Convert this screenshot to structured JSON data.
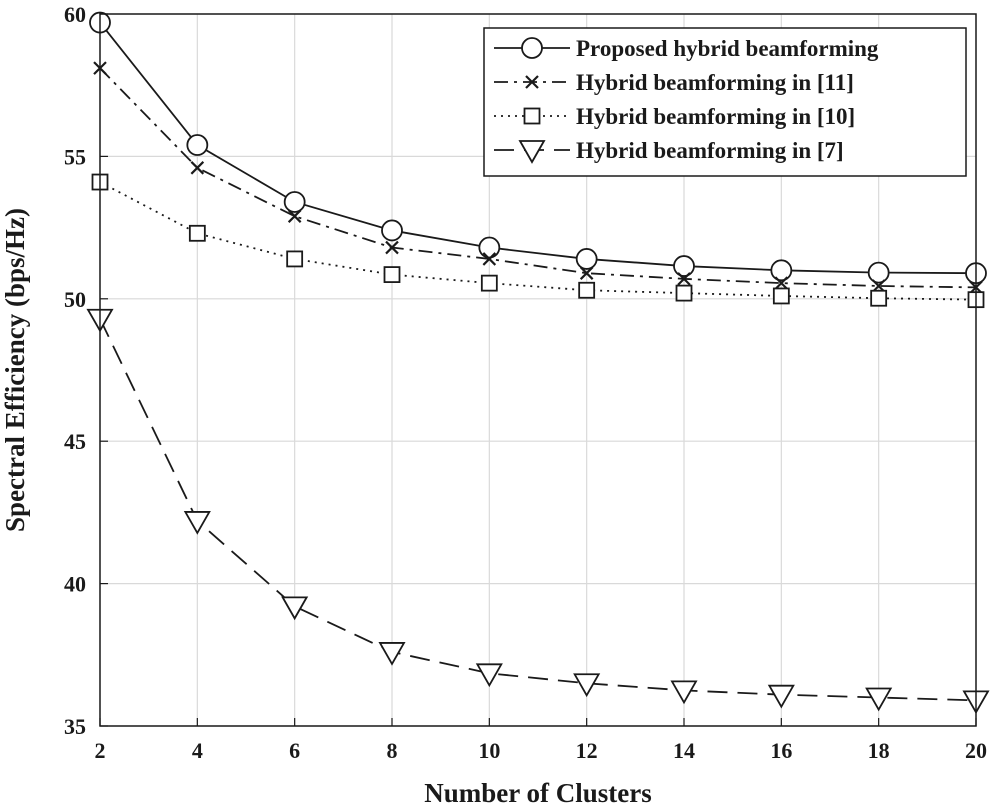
{
  "chart_data": {
    "type": "line",
    "title": "",
    "xlabel": "Number of Clusters",
    "ylabel": "Spectral Efficiency (bps/Hz)",
    "x": [
      2,
      4,
      6,
      8,
      10,
      12,
      14,
      16,
      18,
      20
    ],
    "xlim": [
      2,
      20
    ],
    "ylim": [
      35,
      60
    ],
    "xticks": [
      "2",
      "4",
      "6",
      "8",
      "10",
      "12",
      "14",
      "16",
      "18",
      "20"
    ],
    "yticks": [
      "35",
      "40",
      "45",
      "50",
      "55",
      "60"
    ],
    "grid": true,
    "legend_position": "top-right",
    "series": [
      {
        "name": "Proposed hybrid beamforming",
        "marker": "circle",
        "line": "solid",
        "values": [
          59.7,
          55.4,
          53.4,
          52.4,
          51.8,
          51.4,
          51.15,
          51.0,
          50.92,
          50.9
        ]
      },
      {
        "name": "Hybrid beamforming in [11]",
        "marker": "x",
        "line": "dash-dot",
        "values": [
          58.1,
          54.6,
          52.9,
          51.8,
          51.4,
          50.9,
          50.7,
          50.55,
          50.45,
          50.4
        ]
      },
      {
        "name": "Hybrid beamforming in [10]",
        "marker": "square",
        "line": "dotted",
        "values": [
          54.1,
          52.3,
          51.4,
          50.85,
          50.55,
          50.3,
          50.2,
          50.1,
          50.02,
          49.97
        ]
      },
      {
        "name": "Hybrid beamforming in [7]",
        "marker": "triangle-down",
        "line": "dashed",
        "values": [
          49.3,
          42.2,
          39.2,
          37.6,
          36.85,
          36.5,
          36.25,
          36.1,
          36.0,
          35.9
        ]
      }
    ],
    "colors": {
      "line": "#1a1a1a",
      "grid": "#d9d9d9",
      "background": "#ffffff"
    }
  }
}
